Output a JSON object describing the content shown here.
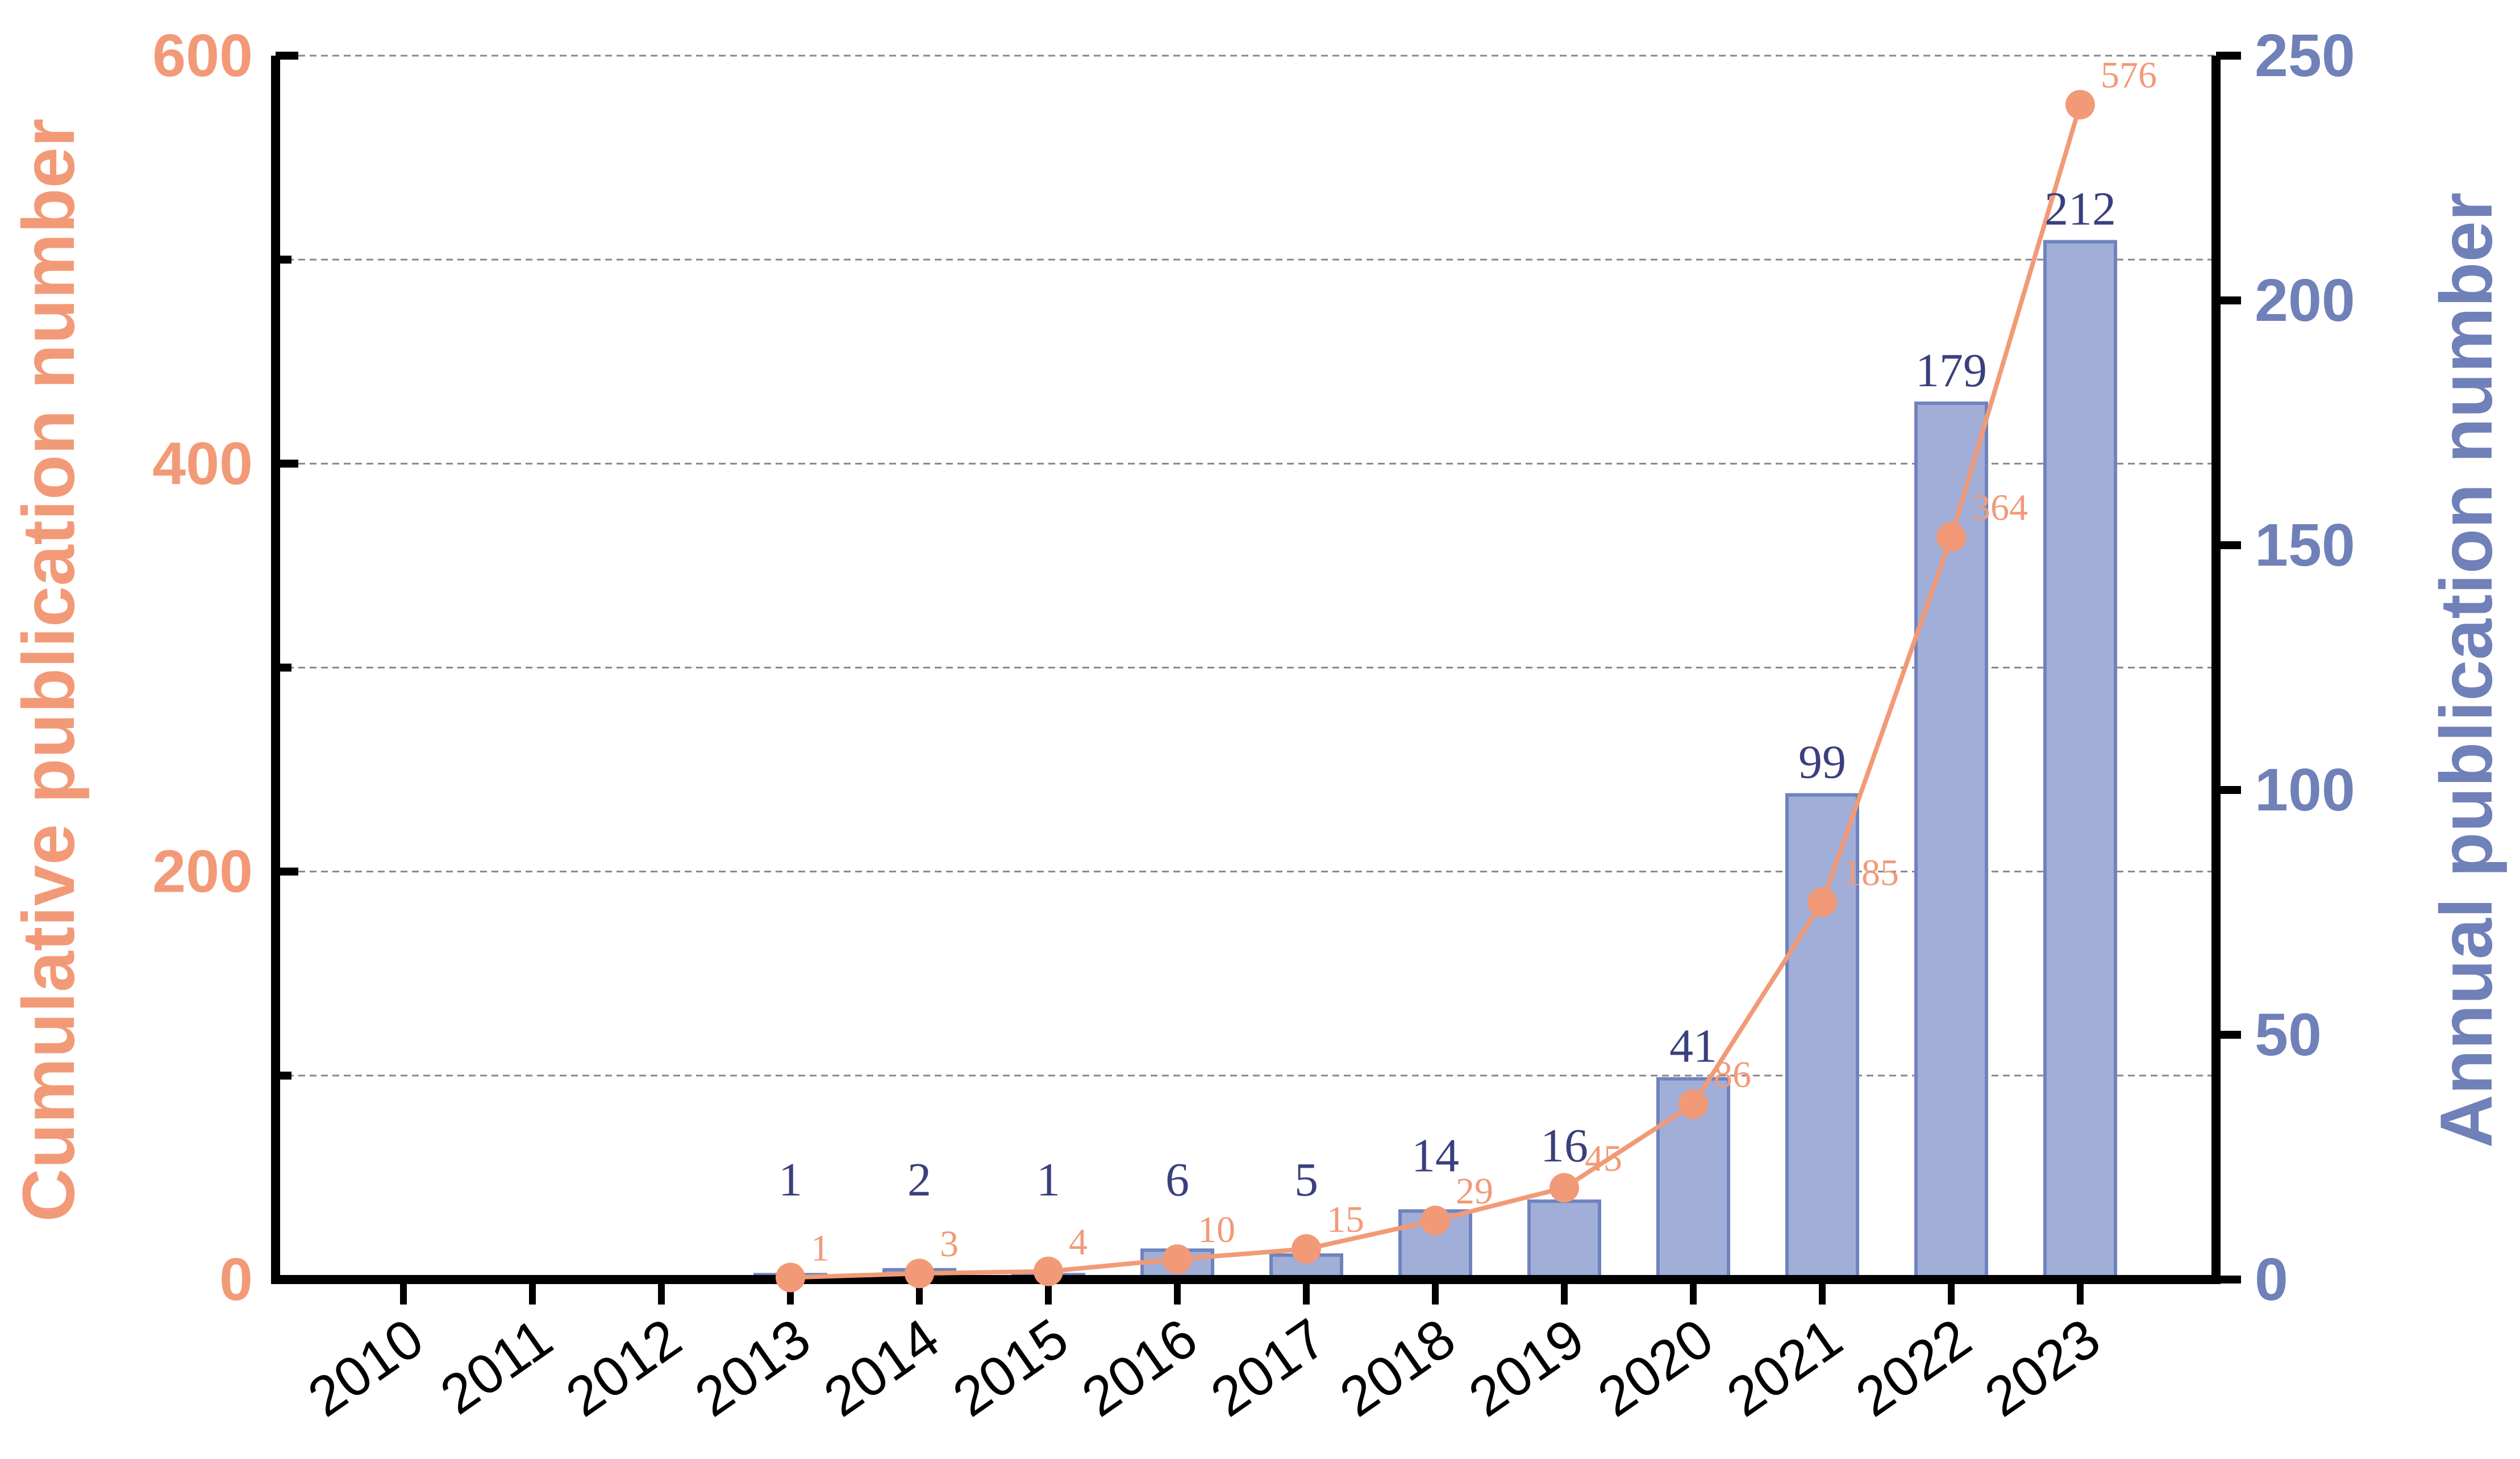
{
  "colors": {
    "cumulative": "#f29a77",
    "annual_bar_fill": "#a1aed8",
    "annual_bar_stroke": "#6f83be",
    "annual_axis_text": "#7080b8",
    "bar_label_text": "#3a3f7e",
    "axis": "#000000",
    "grid": "#888888"
  },
  "chart_data": {
    "type": "bar+line",
    "title": "",
    "xlabel": "",
    "categories": [
      "2010",
      "2011",
      "2012",
      "2013",
      "2014",
      "2015",
      "2016",
      "2017",
      "2018",
      "2019",
      "2020",
      "2021",
      "2022",
      "2023"
    ],
    "y_left": {
      "label": "Cumulative publication number",
      "range": [
        0,
        600
      ],
      "ticks": [
        "0",
        "200",
        "400",
        "600"
      ]
    },
    "y_right": {
      "label": "Annual publication number",
      "range": [
        0,
        250
      ],
      "ticks": [
        "0",
        "50",
        "100",
        "150",
        "200",
        "250"
      ]
    },
    "grid": "horizontal dashed",
    "series": [
      {
        "name": "Annual publication number",
        "type": "bar",
        "axis": "right",
        "values": [
          0,
          0,
          0,
          1,
          2,
          1,
          6,
          5,
          14,
          16,
          41,
          99,
          179,
          212
        ],
        "labels": [
          "",
          "",
          "",
          "1",
          "2",
          "1",
          "6",
          "5",
          "14",
          "16",
          "41",
          "99",
          "179",
          "212"
        ]
      },
      {
        "name": "Cumulative publication number",
        "type": "line",
        "axis": "left",
        "values": [
          null,
          null,
          null,
          1,
          3,
          4,
          10,
          15,
          29,
          45,
          86,
          185,
          364,
          576
        ],
        "labels": [
          "",
          "",
          "",
          "1",
          "3",
          "4",
          "10",
          "15",
          "29",
          "45",
          "86",
          "185",
          "364",
          "576"
        ]
      }
    ]
  }
}
